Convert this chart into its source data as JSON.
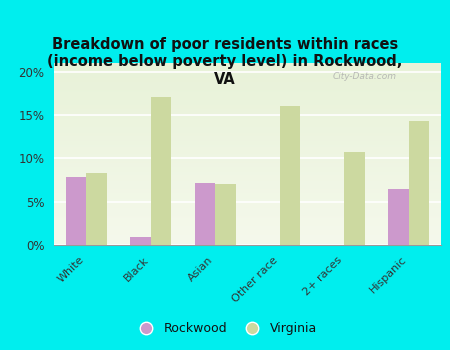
{
  "title": "Breakdown of poor residents within races\n(income below poverty level) in Rockwood,\nVA",
  "categories": [
    "White",
    "Black",
    "Asian",
    "Other race",
    "2+ races",
    "Hispanic"
  ],
  "rockwood_values": [
    7.9,
    0.9,
    7.1,
    0.0,
    0.0,
    6.5
  ],
  "virginia_values": [
    8.3,
    17.1,
    7.0,
    16.0,
    10.7,
    14.3
  ],
  "rockwood_color": "#cc99cc",
  "virginia_color": "#ccd9a0",
  "bg_color": "#00eeee",
  "plot_bg_gradient_top": "#e8f2d8",
  "plot_bg_gradient_bottom": "#f5f9ec",
  "title_fontsize": 10.5,
  "ylim": [
    0,
    21
  ],
  "yticks": [
    0,
    5,
    10,
    15,
    20
  ],
  "ytick_labels": [
    "0%",
    "5%",
    "10%",
    "15%",
    "20%"
  ],
  "bar_width": 0.32,
  "watermark": "City-Data.com"
}
